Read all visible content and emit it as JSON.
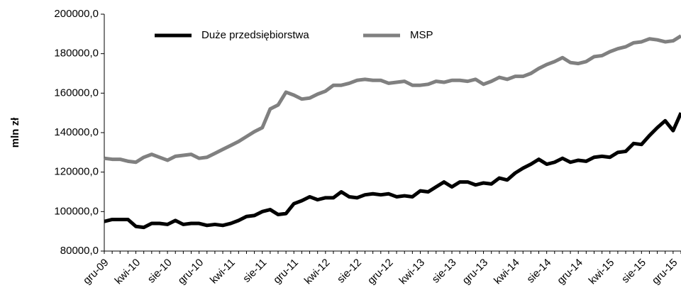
{
  "chart_data": {
    "type": "line",
    "y_label": "mln zł",
    "categories": [
      "gru-09",
      null,
      null,
      null,
      "kwi-10",
      null,
      null,
      null,
      "sie-10",
      null,
      null,
      null,
      "gru-10",
      null,
      null,
      null,
      "kwi-11",
      null,
      null,
      null,
      "sie-11",
      null,
      null,
      null,
      "gru-11",
      null,
      null,
      null,
      "kwi-12",
      null,
      null,
      null,
      "sie-12",
      null,
      null,
      null,
      "gru-12",
      null,
      null,
      null,
      "kwi-13",
      null,
      null,
      null,
      "sie-13",
      null,
      null,
      null,
      "gru-13",
      null,
      null,
      null,
      "kwi-14",
      null,
      null,
      null,
      "sie-14",
      null,
      null,
      null,
      "gru-14",
      null,
      null,
      null,
      "kwi-15",
      null,
      null,
      null,
      "sie-15",
      null,
      null,
      null,
      "gru-15",
      null
    ],
    "series": [
      {
        "name": "Duże przedsiębiorstwa",
        "color": "#000000",
        "values": [
          95000,
          96000,
          96000,
          96000,
          92500,
          92000,
          94000,
          94000,
          93500,
          95500,
          93500,
          94000,
          94000,
          93000,
          93500,
          93000,
          94000,
          95500,
          97500,
          98000,
          100000,
          101000,
          98500,
          99000,
          104000,
          105500,
          107500,
          106000,
          107000,
          107000,
          110000,
          107500,
          107000,
          108500,
          109000,
          108500,
          109000,
          107500,
          108000,
          107500,
          110500,
          110000,
          112500,
          115000,
          112500,
          115000,
          115000,
          113500,
          114500,
          114000,
          117000,
          116000,
          119500,
          122000,
          124000,
          126500,
          124000,
          125000,
          127000,
          125000,
          126000,
          125500,
          127500,
          128000,
          127500,
          130000,
          130500,
          134500,
          134000,
          138500,
          142500,
          146000,
          141000,
          150000
        ]
      },
      {
        "name": "MSP",
        "color": "#808080",
        "values": [
          127000,
          126500,
          126500,
          125500,
          125000,
          127500,
          129000,
          127500,
          126000,
          128000,
          128500,
          129000,
          127000,
          127500,
          129500,
          131500,
          133500,
          135500,
          138000,
          140500,
          142500,
          152000,
          154000,
          160500,
          159000,
          157000,
          157500,
          159500,
          161000,
          164000,
          164000,
          165000,
          166500,
          167000,
          166500,
          166500,
          165000,
          165500,
          166000,
          164000,
          164000,
          164500,
          166000,
          165500,
          166500,
          166500,
          166000,
          167000,
          164500,
          166000,
          168000,
          167000,
          168500,
          168500,
          170000,
          172500,
          174500,
          176000,
          178000,
          175500,
          175000,
          176000,
          178500,
          179000,
          181000,
          182500,
          183500,
          185500,
          186000,
          187500,
          187000,
          186000,
          186500,
          189000
        ]
      }
    ],
    "ylim": [
      80000,
      200000
    ],
    "yticks": [
      {
        "value": 80000,
        "label": "80000,0"
      },
      {
        "value": 100000,
        "label": "100000,0"
      },
      {
        "value": 120000,
        "label": "120000,0"
      },
      {
        "value": 140000,
        "label": "140000,0"
      },
      {
        "value": 160000,
        "label": "160000,0"
      },
      {
        "value": 180000,
        "label": "180000,0"
      },
      {
        "value": 200000,
        "label": "200000,0"
      }
    ],
    "grid": false,
    "legend": "top"
  }
}
